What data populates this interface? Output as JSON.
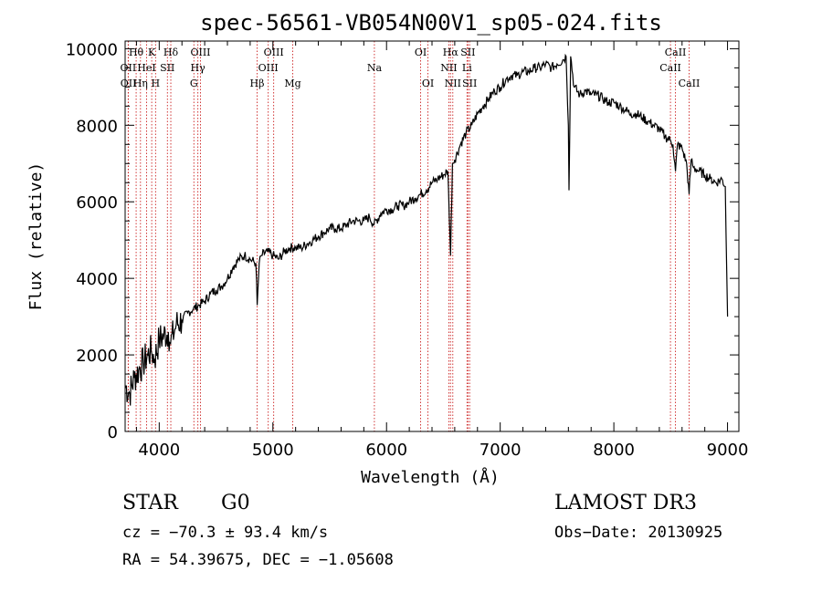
{
  "chart_data": {
    "type": "line",
    "title": "spec-56561-VB054N00V1_sp05-024.fits",
    "xlabel": "Wavelength (Å)",
    "ylabel": "Flux (relative)",
    "xlim": [
      3700,
      9100
    ],
    "ylim": [
      0,
      10200
    ],
    "xticks": [
      4000,
      5000,
      6000,
      7000,
      8000,
      9000
    ],
    "yticks": [
      0,
      2000,
      4000,
      6000,
      8000,
      10000
    ],
    "xtick_labels": [
      "4000",
      "5000",
      "6000",
      "7000",
      "8000",
      "9000"
    ],
    "ytick_labels": [
      "0",
      "2000",
      "4000",
      "6000",
      "8000",
      "10000"
    ],
    "series": [
      {
        "name": "flux",
        "x": [
          3700,
          3740,
          3780,
          3820,
          3860,
          3900,
          3930,
          3960,
          4000,
          4040,
          4080,
          4100,
          4150,
          4200,
          4250,
          4300,
          4350,
          4400,
          4450,
          4500,
          4550,
          4600,
          4650,
          4700,
          4750,
          4800,
          4850,
          4862,
          4880,
          4900,
          4950,
          5000,
          5050,
          5100,
          5150,
          5200,
          5250,
          5300,
          5350,
          5400,
          5450,
          5500,
          5550,
          5600,
          5650,
          5700,
          5750,
          5800,
          5850,
          5890,
          5950,
          6000,
          6050,
          6100,
          6150,
          6200,
          6250,
          6300,
          6350,
          6400,
          6450,
          6500,
          6540,
          6563,
          6580,
          6600,
          6650,
          6700,
          6750,
          6800,
          6850,
          6900,
          6950,
          7000,
          7050,
          7100,
          7150,
          7200,
          7250,
          7300,
          7350,
          7400,
          7450,
          7500,
          7550,
          7580,
          7600,
          7605,
          7620,
          7650,
          7700,
          7750,
          7800,
          7850,
          7900,
          7950,
          8000,
          8050,
          8100,
          8150,
          8200,
          8250,
          8300,
          8350,
          8400,
          8450,
          8500,
          8520,
          8542,
          8560,
          8600,
          8640,
          8662,
          8680,
          8700,
          8750,
          8800,
          8850,
          8900,
          8950,
          8980,
          9000
        ],
        "y": [
          1200,
          1000,
          1400,
          1600,
          1800,
          2000,
          2100,
          1900,
          2400,
          2500,
          2600,
          2300,
          2800,
          2900,
          3100,
          3200,
          3300,
          3400,
          3600,
          3700,
          3800,
          4000,
          4300,
          4500,
          4600,
          4500,
          4400,
          3300,
          4400,
          4600,
          4700,
          4600,
          4500,
          4700,
          4800,
          4800,
          4800,
          4900,
          5000,
          5100,
          5200,
          5300,
          5300,
          5300,
          5400,
          5500,
          5500,
          5500,
          5600,
          5400,
          5700,
          5800,
          5800,
          5900,
          5900,
          6000,
          6100,
          6200,
          6300,
          6500,
          6600,
          6700,
          6800,
          4600,
          7000,
          7100,
          7500,
          7800,
          8000,
          8300,
          8500,
          8700,
          8900,
          9000,
          9200,
          9300,
          9300,
          9400,
          9400,
          9500,
          9500,
          9600,
          9500,
          9600,
          9700,
          9800,
          8000,
          6300,
          9800,
          9000,
          8800,
          8900,
          8800,
          8800,
          8700,
          8600,
          8600,
          8500,
          8400,
          8300,
          8300,
          8200,
          8100,
          8000,
          7900,
          7700,
          7600,
          7500,
          6800,
          7500,
          7400,
          7000,
          6200,
          7100,
          6900,
          6800,
          6700,
          6600,
          6500,
          6600,
          6400,
          3000
        ]
      }
    ],
    "emission_lines": [
      {
        "label": "Hθ",
        "wl": 3797,
        "row": 0
      },
      {
        "label": "OII",
        "wl": 3727,
        "row": 1
      },
      {
        "label": "OII",
        "wl": 3729,
        "row": 2
      },
      {
        "label": "Hη",
        "wl": 3835,
        "row": 2
      },
      {
        "label": "K",
        "wl": 3934,
        "row": 0
      },
      {
        "label": "HeI",
        "wl": 3889,
        "row": 1
      },
      {
        "label": "SII",
        "wl": 4072,
        "row": 1
      },
      {
        "label": "H",
        "wl": 3968,
        "row": 2
      },
      {
        "label": "Hδ",
        "wl": 4102,
        "row": 0
      },
      {
        "label": "OIII",
        "wl": 4363,
        "row": 0
      },
      {
        "label": "Hγ",
        "wl": 4340,
        "row": 1
      },
      {
        "label": "G",
        "wl": 4305,
        "row": 2
      },
      {
        "label": "OIII",
        "wl": 5007,
        "row": 0
      },
      {
        "label": "OIII",
        "wl": 4959,
        "row": 1
      },
      {
        "label": "Hβ",
        "wl": 4861,
        "row": 2
      },
      {
        "label": "Mg",
        "wl": 5175,
        "row": 2
      },
      {
        "label": "Na",
        "wl": 5893,
        "row": 1
      },
      {
        "label": "OI",
        "wl": 6300,
        "row": 0
      },
      {
        "label": "OI",
        "wl": 6364,
        "row": 2
      },
      {
        "label": "Hα",
        "wl": 6563,
        "row": 0
      },
      {
        "label": "SII",
        "wl": 6716,
        "row": 0
      },
      {
        "label": "NII",
        "wl": 6548,
        "row": 1
      },
      {
        "label": "Li",
        "wl": 6708,
        "row": 1
      },
      {
        "label": "NII",
        "wl": 6583,
        "row": 2
      },
      {
        "label": "SII",
        "wl": 6731,
        "row": 2
      },
      {
        "label": "CaII",
        "wl": 8542,
        "row": 0
      },
      {
        "label": "CaII",
        "wl": 8498,
        "row": 1
      },
      {
        "label": "CaII",
        "wl": 8662,
        "row": 2
      }
    ]
  },
  "info": {
    "class": "STAR",
    "subclass": "G0",
    "survey": "LAMOST DR3",
    "redshift": "cz = −70.3 ± 93.4 km/s",
    "obs_date": "Obs−Date: 20130925",
    "coords": "RA =  54.39675, DEC =  −1.05608"
  },
  "colors": {
    "line": "#000000",
    "marker": "#cc2222",
    "axes": "#000000"
  }
}
